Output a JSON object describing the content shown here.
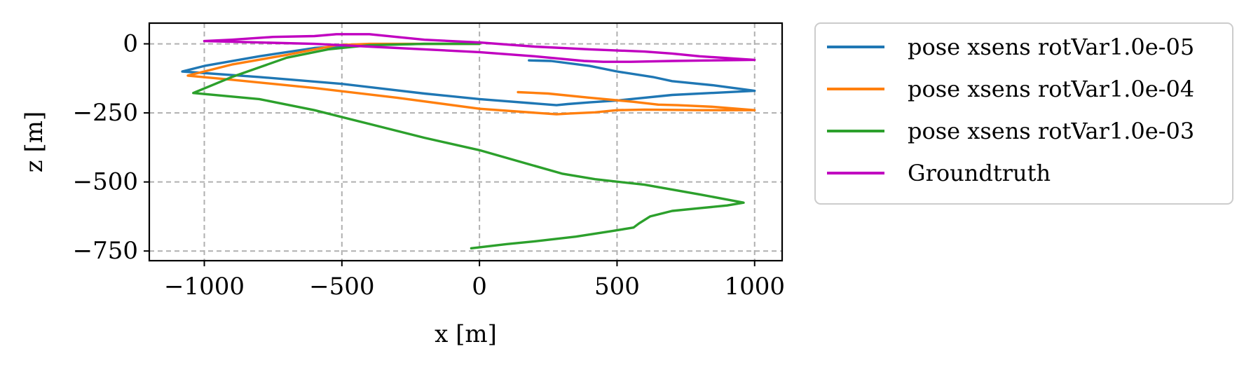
{
  "chart_data": {
    "type": "line",
    "title": "",
    "xlabel": "x [m]",
    "ylabel": "z [m]",
    "xlim": [
      -1200,
      1100
    ],
    "ylim": [
      -785,
      75
    ],
    "xticks": [
      -1000,
      -500,
      0,
      500,
      1000
    ],
    "yticks": [
      0,
      -250,
      -500,
      -750
    ],
    "xtick_labels": [
      "−1000",
      "−500",
      "0",
      "500",
      "1000"
    ],
    "ytick_labels": [
      "0",
      "−250",
      "−500",
      "−750"
    ],
    "grid": true,
    "grid_style": "dashed",
    "legend_position": "outside-right",
    "series": [
      {
        "name": "pose xsens rotVar1.0e-05",
        "color": "#1f77b4",
        "points": [
          [
            180,
            -60
          ],
          [
            260,
            -62
          ],
          [
            400,
            -80
          ],
          [
            500,
            -100
          ],
          [
            630,
            -120
          ],
          [
            700,
            -135
          ],
          [
            850,
            -150
          ],
          [
            1000,
            -170
          ],
          [
            700,
            -185
          ],
          [
            500,
            -205
          ],
          [
            400,
            -212
          ],
          [
            320,
            -218
          ],
          [
            280,
            -222
          ],
          [
            0,
            -200
          ],
          [
            -200,
            -180
          ],
          [
            -500,
            -145
          ],
          [
            -800,
            -120
          ],
          [
            -1080,
            -100
          ],
          [
            -1000,
            -80
          ],
          [
            -800,
            -45
          ],
          [
            -600,
            -15
          ],
          [
            -450,
            -5
          ],
          [
            -200,
            0
          ],
          [
            0,
            0
          ]
        ]
      },
      {
        "name": "pose xsens rotVar1.0e-04",
        "color": "#ff7f0e",
        "points": [
          [
            140,
            -175
          ],
          [
            250,
            -180
          ],
          [
            400,
            -195
          ],
          [
            560,
            -210
          ],
          [
            650,
            -220
          ],
          [
            720,
            -222
          ],
          [
            850,
            -228
          ],
          [
            1000,
            -240
          ],
          [
            800,
            -240
          ],
          [
            600,
            -238
          ],
          [
            500,
            -240
          ],
          [
            420,
            -248
          ],
          [
            330,
            -252
          ],
          [
            280,
            -255
          ],
          [
            0,
            -235
          ],
          [
            -300,
            -195
          ],
          [
            -600,
            -160
          ],
          [
            -900,
            -130
          ],
          [
            -1060,
            -115
          ],
          [
            -900,
            -75
          ],
          [
            -700,
            -40
          ],
          [
            -520,
            -5
          ],
          [
            -400,
            0
          ],
          [
            -200,
            0
          ],
          [
            0,
            0
          ]
        ]
      },
      {
        "name": "pose xsens rotVar1.0e-03",
        "color": "#2ca02c",
        "points": [
          [
            -30,
            -740
          ],
          [
            100,
            -725
          ],
          [
            200,
            -715
          ],
          [
            350,
            -698
          ],
          [
            480,
            -678
          ],
          [
            560,
            -665
          ],
          [
            580,
            -650
          ],
          [
            620,
            -625
          ],
          [
            700,
            -605
          ],
          [
            800,
            -595
          ],
          [
            900,
            -585
          ],
          [
            960,
            -575
          ],
          [
            800,
            -545
          ],
          [
            600,
            -510
          ],
          [
            420,
            -490
          ],
          [
            300,
            -470
          ],
          [
            0,
            -385
          ],
          [
            -200,
            -340
          ],
          [
            -400,
            -290
          ],
          [
            -600,
            -240
          ],
          [
            -800,
            -200
          ],
          [
            -1040,
            -178
          ],
          [
            -900,
            -120
          ],
          [
            -700,
            -50
          ],
          [
            -550,
            -20
          ],
          [
            -400,
            -5
          ],
          [
            -200,
            0
          ],
          [
            0,
            0
          ]
        ]
      },
      {
        "name": "Groundtruth",
        "color": "#c000c0",
        "points": [
          [
            -1000,
            10
          ],
          [
            -900,
            15
          ],
          [
            -750,
            25
          ],
          [
            -600,
            28
          ],
          [
            -520,
            35
          ],
          [
            -400,
            35
          ],
          [
            -200,
            15
          ],
          [
            0,
            5
          ],
          [
            200,
            -10
          ],
          [
            400,
            -20
          ],
          [
            600,
            -28
          ],
          [
            700,
            -35
          ],
          [
            800,
            -45
          ],
          [
            950,
            -55
          ],
          [
            1000,
            -58
          ],
          [
            850,
            -60
          ],
          [
            700,
            -62
          ],
          [
            550,
            -65
          ],
          [
            450,
            -65
          ],
          [
            380,
            -62
          ],
          [
            200,
            -45
          ],
          [
            0,
            -30
          ],
          [
            -200,
            -20
          ],
          [
            -400,
            -10
          ],
          [
            -600,
            0
          ],
          [
            -800,
            5
          ],
          [
            -1000,
            10
          ]
        ]
      }
    ]
  }
}
